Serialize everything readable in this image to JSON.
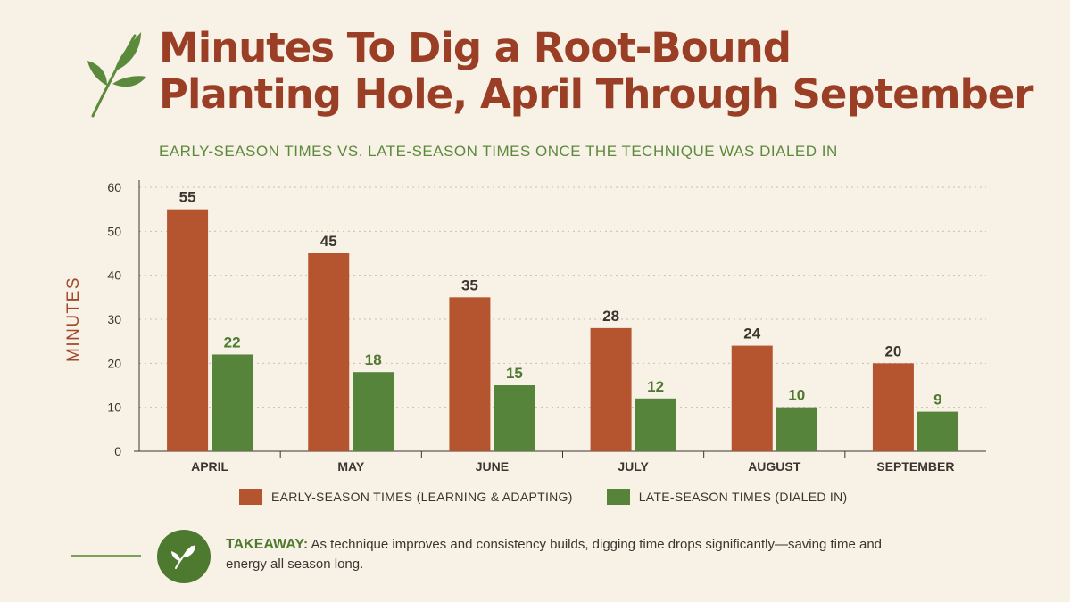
{
  "header": {
    "title_line1": "Minutes To Dig a Root-Bound",
    "title_line2": "Planting Hole, April Through September",
    "subtitle": "EARLY-SEASON TIMES VS. LATE-SEASON TIMES ONCE THE TECHNIQUE WAS DIALED IN",
    "logo_icon": "leaf-sprig-icon"
  },
  "chart_data": {
    "type": "bar",
    "categories": [
      "APRIL",
      "MAY",
      "JUNE",
      "JULY",
      "AUGUST",
      "SEPTEMBER"
    ],
    "series": [
      {
        "name": "EARLY-SEASON TIMES (LEARNING & ADAPTING)",
        "values": [
          55,
          45,
          35,
          28,
          24,
          20
        ],
        "color": "#b5552f",
        "label_color": "#3b3530"
      },
      {
        "name": "LATE-SEASON TIMES (DIALED IN)",
        "values": [
          22,
          18,
          15,
          12,
          10,
          9
        ],
        "color": "#56843a",
        "label_color": "#4e7a30"
      }
    ],
    "title": "Minutes To Dig a Root-Bound Planting Hole, April Through September",
    "subtitle": "EARLY-SEASON TIMES VS. LATE-SEASON TIMES ONCE THE TECHNIQUE WAS DIALED IN",
    "xlabel": "",
    "ylabel": "MINUTES",
    "ylim": [
      0,
      60
    ],
    "yticks": [
      0,
      10,
      20,
      30,
      40,
      50,
      60
    ],
    "grid": true,
    "legend": "bottom"
  },
  "takeaway": {
    "label": "TAKEAWAY:",
    "text": "As technique improves and consistency builds, digging time drops significantly—saving time and energy all season long.",
    "icon": "leaf-sprig-icon"
  }
}
